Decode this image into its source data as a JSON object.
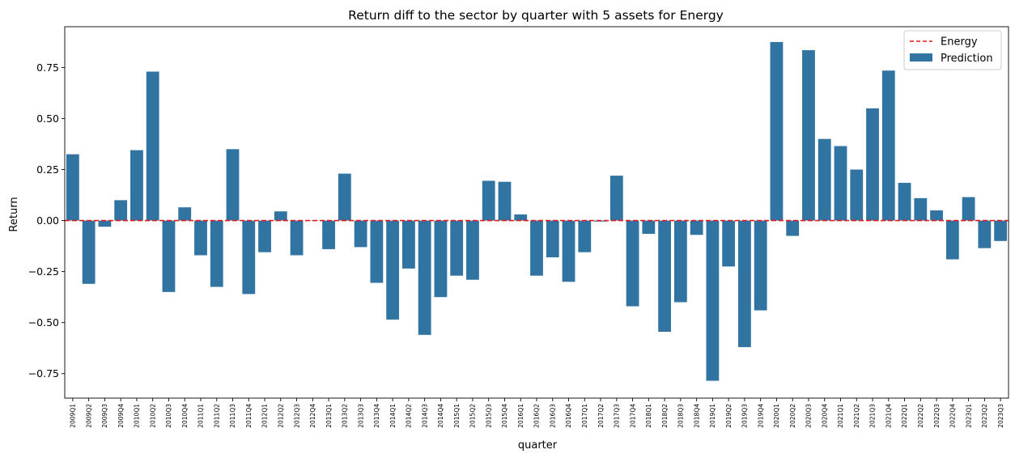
{
  "chart_data": {
    "type": "bar",
    "title": "Return diff to the sector by quarter with 5 assets for Energy",
    "xlabel": "quarter",
    "ylabel": "Return",
    "ylim": [
      -0.87,
      0.95
    ],
    "yticks": [
      -0.75,
      -0.5,
      -0.25,
      0.0,
      0.25,
      0.5,
      0.75
    ],
    "ytick_labels": [
      "−0.75",
      "−0.50",
      "−0.25",
      "0.00",
      "0.25",
      "0.50",
      "0.75"
    ],
    "grid": false,
    "legend_position": "top-right",
    "categories": [
      "2009Q1",
      "2009Q2",
      "2009Q3",
      "2009Q4",
      "2010Q1",
      "2010Q2",
      "2010Q3",
      "2010Q4",
      "2011Q1",
      "2011Q2",
      "2011Q3",
      "2011Q4",
      "2012Q1",
      "2012Q2",
      "2012Q3",
      "2012Q4",
      "2013Q1",
      "2013Q2",
      "2013Q3",
      "2013Q4",
      "2014Q1",
      "2014Q2",
      "2014Q3",
      "2014Q4",
      "2015Q1",
      "2015Q2",
      "2015Q3",
      "2015Q4",
      "2016Q1",
      "2016Q2",
      "2016Q3",
      "2016Q4",
      "2017Q1",
      "2017Q2",
      "2017Q3",
      "2017Q4",
      "2018Q1",
      "2018Q2",
      "2018Q3",
      "2018Q4",
      "2019Q1",
      "2019Q2",
      "2019Q3",
      "2019Q4",
      "2020Q1",
      "2020Q2",
      "2020Q3",
      "2020Q4",
      "2021Q1",
      "2021Q2",
      "2021Q3",
      "2021Q4",
      "2022Q1",
      "2022Q2",
      "2022Q3",
      "2022Q4",
      "2023Q1",
      "2023Q2",
      "2023Q3"
    ],
    "series": [
      {
        "name": "Prediction",
        "color": "#3274a1",
        "values": [
          0.325,
          -0.31,
          -0.03,
          0.1,
          0.345,
          0.73,
          -0.35,
          0.065,
          -0.17,
          -0.325,
          0.35,
          -0.36,
          -0.155,
          0.045,
          -0.17,
          0.0,
          -0.14,
          0.23,
          -0.13,
          -0.305,
          -0.485,
          -0.235,
          -0.56,
          -0.375,
          -0.27,
          -0.29,
          0.195,
          0.19,
          0.03,
          -0.27,
          -0.18,
          -0.3,
          -0.155,
          -0.005,
          0.22,
          -0.42,
          -0.065,
          -0.545,
          -0.4,
          -0.07,
          -0.785,
          -0.225,
          -0.62,
          -0.44,
          0.875,
          -0.075,
          0.835,
          0.4,
          0.365,
          0.25,
          0.55,
          0.735,
          0.185,
          0.11,
          0.05,
          -0.19,
          0.115,
          -0.135,
          -0.1
        ]
      }
    ],
    "reference_line": {
      "name": "Energy",
      "y": 0.0,
      "color": "#e41a1c",
      "style": "dashed"
    },
    "legend": [
      "Energy",
      "Prediction"
    ]
  }
}
